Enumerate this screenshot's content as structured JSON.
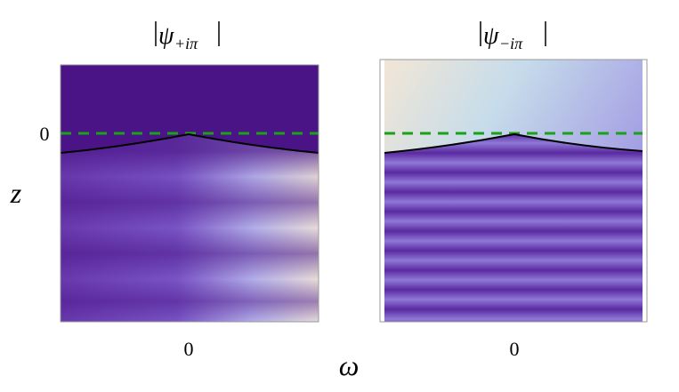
{
  "figure": {
    "x_label": "ω",
    "y_label": "z",
    "panels": [
      {
        "title_symbol": "ψ",
        "title_subscript": "+iπ",
        "x_tick": "0",
        "y_tick": "0"
      },
      {
        "title_symbol": "ψ",
        "title_subscript": "−iπ",
        "x_tick": "0"
      }
    ]
  }
}
